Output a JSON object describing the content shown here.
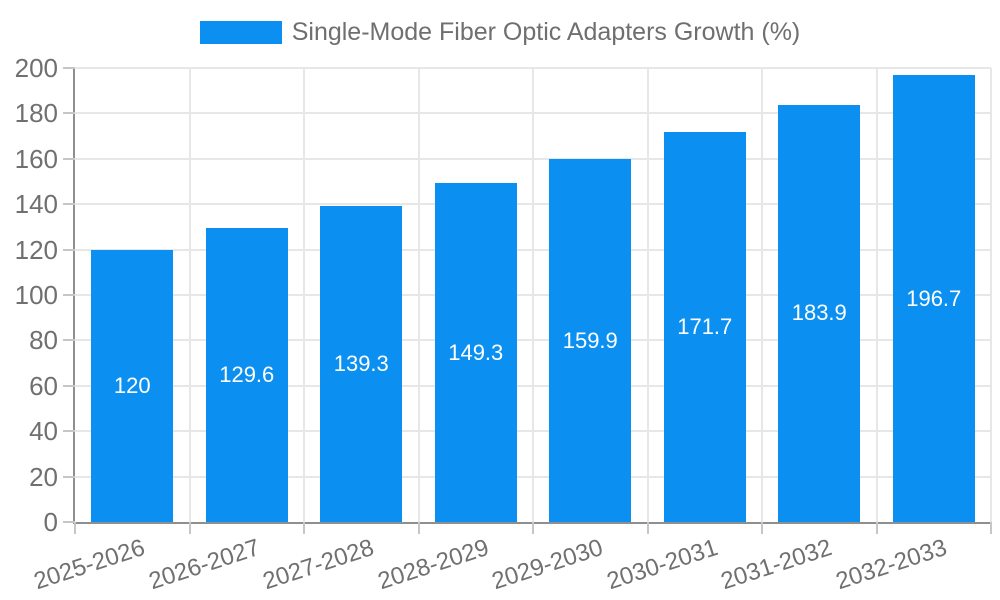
{
  "legend": {
    "label": "Single-Mode Fiber Optic Adapters Growth (%)"
  },
  "chart_data": {
    "type": "bar",
    "title": "Single-Mode Fiber Optic Adapters Growth (%)",
    "legend_position": "top-center",
    "categories": [
      "2025-2026",
      "2026-2027",
      "2027-2028",
      "2028-2029",
      "2029-2030",
      "2030-2031",
      "2031-2032",
      "2032-2033"
    ],
    "values": [
      120,
      129.6,
      139.3,
      149.3,
      159.9,
      171.7,
      183.9,
      196.7
    ],
    "bar_labels": [
      "120",
      "129.6",
      "139.3",
      "149.3",
      "159.9",
      "171.7",
      "183.9",
      "196.7"
    ],
    "bar_label_position": "inside-center",
    "xlabel": "",
    "ylabel": "",
    "ylim": [
      0,
      200
    ],
    "ytick_step": 20,
    "ytick_labels": [
      "0",
      "20",
      "40",
      "60",
      "80",
      "100",
      "120",
      "140",
      "160",
      "180",
      "200"
    ],
    "xtick_rotation_deg": -18,
    "grid": "horizontal and vertical",
    "colors": {
      "bar": "#0b90f2",
      "bar_label": "#ffffff",
      "axis_text": "#707070",
      "legend_text": "#6f6f6f",
      "grid": "#e7e7e7",
      "axis_line": "#8f8f8f",
      "tick": "#c6c6c6",
      "background": "#ffffff"
    }
  }
}
